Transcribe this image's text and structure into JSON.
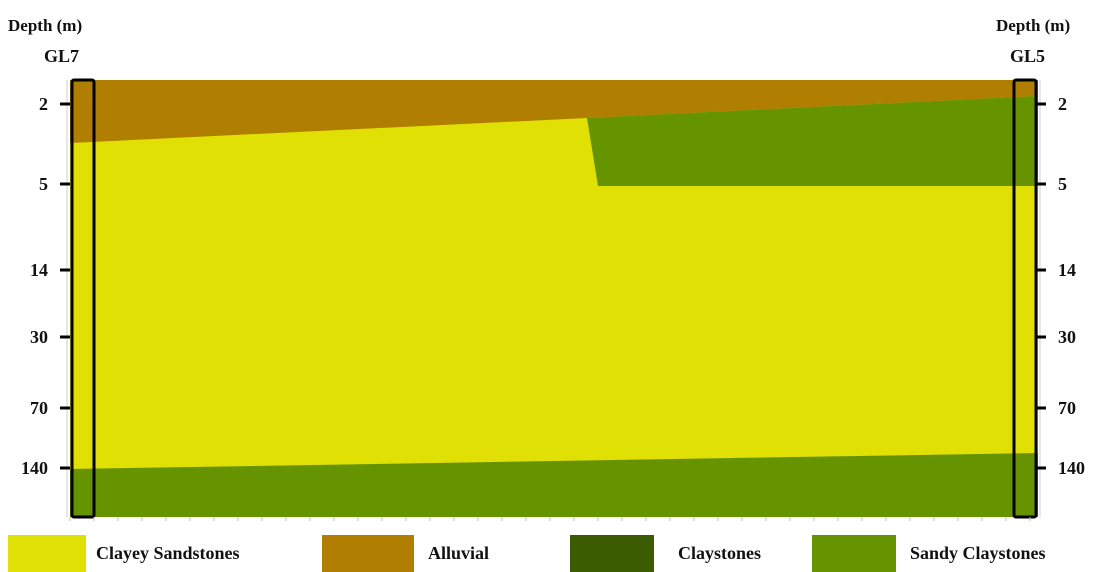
{
  "left_borehole": {
    "depth_title": "Depth (m)",
    "name": "GL7"
  },
  "right_borehole": {
    "depth_title": "Depth (m)",
    "name": "GL5"
  },
  "depth_ticks": [
    "2",
    "5",
    "14",
    "30",
    "70",
    "140"
  ],
  "colors": {
    "clayey_sandstones": "#E0E004",
    "alluvial": "#B07E00",
    "claystones": "#3B5C00",
    "sandy_claystones": "#669400"
  },
  "legend": [
    {
      "label": "Clayey Sandstones",
      "color": "#E0E004"
    },
    {
      "label": "Alluvial",
      "color": "#B07E00"
    },
    {
      "label": "Claystones",
      "color": "#3B5C00"
    },
    {
      "label": "Sandy Claystones",
      "color": "#669400"
    }
  ]
}
